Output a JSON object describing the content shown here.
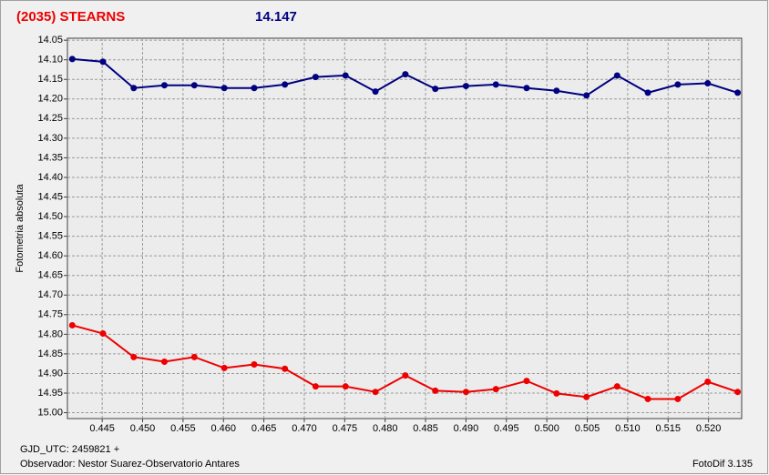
{
  "chart_data": {
    "type": "line",
    "title": "(2035) STEARNS",
    "subtitle": "14.147",
    "y_label": "Fotometria absoluta",
    "x_label": "GJD_UTC: 2459821 +",
    "footer_left": "Observador: Nestor Suarez-Observatorio Antares",
    "footer_right": "FotoDif 3.135",
    "y_inverted": true,
    "grid": true,
    "xlim": [
      0.4407,
      0.5241
    ],
    "ylim": [
      14.045,
      15.015
    ],
    "xticks": [
      0.445,
      {
        "value": 0.45,
        "label": "0.450"
      },
      0.455,
      {
        "value": 0.46,
        "label": "0.460"
      },
      0.465,
      {
        "value": 0.47,
        "label": "0.470"
      },
      0.475,
      {
        "value": 0.48,
        "label": "0.480"
      },
      0.485,
      {
        "value": 0.49,
        "label": "0.490"
      },
      0.495,
      {
        "value": 0.5,
        "label": "0.500"
      },
      0.505,
      {
        "value": 0.51,
        "label": "0.510"
      },
      0.515,
      {
        "value": 0.52,
        "label": "0.520"
      }
    ],
    "yticks": [
      14.05,
      {
        "value": 14.1,
        "label": "14.10"
      },
      14.15,
      {
        "value": 14.2,
        "label": "14.20"
      },
      14.25,
      {
        "value": 14.3,
        "label": "14.30"
      },
      14.35,
      {
        "value": 14.4,
        "label": "14.40"
      },
      14.45,
      {
        "value": 14.5,
        "label": "14.50"
      },
      14.55,
      {
        "value": 14.6,
        "label": "14.60"
      },
      14.65,
      {
        "value": 14.7,
        "label": "14.70"
      },
      14.75,
      {
        "value": 14.8,
        "label": "14.80"
      },
      14.85,
      {
        "value": 14.9,
        "label": "14.90"
      },
      14.95,
      {
        "value": 15,
        "label": "15.00"
      }
    ],
    "x": [
      0.4413,
      0.4451,
      0.4489,
      0.4527,
      0.4564,
      0.4601,
      0.4638,
      0.4676,
      0.4714,
      0.4751,
      0.4788,
      0.4825,
      0.4862,
      0.49,
      0.4937,
      0.4975,
      0.5012,
      0.5049,
      0.5087,
      0.5125,
      0.5162,
      0.5199,
      0.5236
    ],
    "series": [
      {
        "color": "#000080",
        "values": [
          14.098,
          14.105,
          14.172,
          14.165,
          14.165,
          14.172,
          14.172,
          14.163,
          14.144,
          14.14,
          14.181,
          14.137,
          14.174,
          14.167,
          14.163,
          14.172,
          14.179,
          14.191,
          14.14,
          14.184,
          14.163,
          14.16,
          14.184
        ]
      },
      {
        "color": "#ee0000",
        "values": [
          14.777,
          14.798,
          14.858,
          14.87,
          14.858,
          14.886,
          14.877,
          14.888,
          14.933,
          14.933,
          14.947,
          14.905,
          14.944,
          14.947,
          14.94,
          14.919,
          14.951,
          14.96,
          14.933,
          14.965,
          14.965,
          14.921,
          14.947
        ]
      }
    ]
  }
}
